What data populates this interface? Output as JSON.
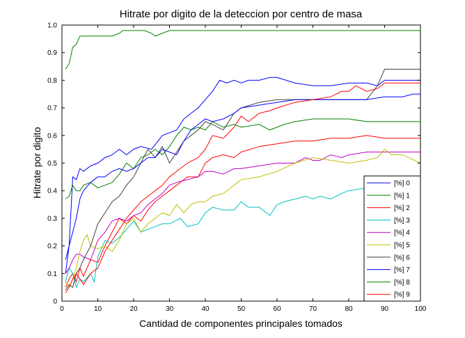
{
  "chart_data": {
    "type": "line",
    "title": "Hitrate por digito de la deteccion por centro de masa",
    "xlabel": "Cantidad de componentes principales tomados",
    "ylabel": "Hitrate por digito",
    "xlim": [
      0,
      100
    ],
    "ylim": [
      0,
      1
    ],
    "xticks": [
      0,
      10,
      20,
      30,
      40,
      50,
      60,
      70,
      80,
      90,
      100
    ],
    "yticks": [
      0,
      0.1,
      0.2,
      0.3,
      0.4,
      0.5,
      0.6,
      0.7,
      0.8,
      0.9,
      1.0
    ],
    "xtick_labels": [
      "0",
      "10",
      "20",
      "30",
      "40",
      "50",
      "60",
      "70",
      "80",
      "90",
      "100"
    ],
    "ytick_labels": [
      "0",
      "0.1",
      "0.2",
      "0.3",
      "0.4",
      "0.5",
      "0.6",
      "0.7",
      "0.8",
      "0.9",
      "1.0"
    ],
    "grid": false,
    "legend_position": "bottom-right",
    "series": [
      {
        "name": "[%] 0",
        "color": "#0000ff",
        "x": [
          1,
          2,
          3,
          4,
          5,
          6,
          8,
          10,
          12,
          14,
          16,
          18,
          20,
          22,
          25,
          28,
          30,
          32,
          34,
          36,
          38,
          40,
          42,
          44,
          46,
          48,
          50,
          52,
          55,
          58,
          60,
          65,
          70,
          75,
          80,
          85,
          88,
          90,
          95,
          100
        ],
        "y": [
          0.15,
          0.2,
          0.45,
          0.44,
          0.48,
          0.47,
          0.49,
          0.5,
          0.52,
          0.53,
          0.55,
          0.53,
          0.55,
          0.56,
          0.55,
          0.6,
          0.61,
          0.62,
          0.66,
          0.68,
          0.7,
          0.73,
          0.76,
          0.8,
          0.79,
          0.8,
          0.79,
          0.8,
          0.8,
          0.81,
          0.81,
          0.79,
          0.78,
          0.78,
          0.79,
          0.79,
          0.78,
          0.8,
          0.8,
          0.8
        ]
      },
      {
        "name": "[%] 1",
        "color": "#008000",
        "x": [
          1,
          2,
          3,
          4,
          5,
          6,
          8,
          10,
          12,
          14,
          16,
          18,
          20,
          22,
          24,
          26,
          28,
          30,
          32,
          34,
          36,
          38,
          40,
          42,
          45,
          48,
          50,
          55,
          58,
          60,
          62,
          65,
          70,
          75,
          80,
          85,
          90,
          95,
          100
        ],
        "y": [
          0.37,
          0.38,
          0.42,
          0.4,
          0.4,
          0.42,
          0.43,
          0.41,
          0.42,
          0.43,
          0.46,
          0.5,
          0.48,
          0.52,
          0.53,
          0.55,
          0.53,
          0.56,
          0.6,
          0.63,
          0.62,
          0.63,
          0.62,
          0.65,
          0.63,
          0.64,
          0.63,
          0.64,
          0.62,
          0.63,
          0.64,
          0.65,
          0.66,
          0.66,
          0.66,
          0.65,
          0.65,
          0.65,
          0.65
        ]
      },
      {
        "name": "[%] 2",
        "color": "#ff0000",
        "x": [
          1,
          2,
          3,
          4,
          5,
          6,
          8,
          10,
          12,
          14,
          16,
          18,
          20,
          22,
          24,
          26,
          28,
          30,
          32,
          35,
          38,
          40,
          42,
          45,
          48,
          50,
          55,
          60,
          65,
          70,
          75,
          80,
          85,
          90,
          95,
          100
        ],
        "y": [
          0.05,
          0.08,
          0.1,
          0.07,
          0.12,
          0.09,
          0.15,
          0.14,
          0.2,
          0.25,
          0.3,
          0.28,
          0.31,
          0.29,
          0.33,
          0.36,
          0.38,
          0.4,
          0.42,
          0.45,
          0.45,
          0.5,
          0.52,
          0.53,
          0.52,
          0.54,
          0.56,
          0.57,
          0.58,
          0.58,
          0.59,
          0.59,
          0.6,
          0.59,
          0.59,
          0.59
        ]
      },
      {
        "name": "[%] 3",
        "color": "#00bfbf",
        "x": [
          1,
          2,
          3,
          4,
          5,
          6,
          8,
          9,
          10,
          12,
          14,
          16,
          18,
          20,
          22,
          24,
          26,
          28,
          30,
          33,
          35,
          38,
          40,
          42,
          45,
          48,
          50,
          52,
          55,
          58,
          60,
          62,
          65,
          68,
          70,
          72,
          75,
          78,
          80,
          85,
          90,
          95,
          100
        ],
        "y": [
          0.07,
          0.12,
          0.1,
          0.05,
          0.08,
          0.07,
          0.1,
          0.07,
          0.16,
          0.22,
          0.21,
          0.23,
          0.26,
          0.29,
          0.25,
          0.26,
          0.27,
          0.28,
          0.28,
          0.3,
          0.27,
          0.28,
          0.32,
          0.34,
          0.33,
          0.33,
          0.36,
          0.34,
          0.34,
          0.31,
          0.35,
          0.36,
          0.37,
          0.38,
          0.37,
          0.38,
          0.37,
          0.39,
          0.4,
          0.41,
          0.42,
          0.42,
          0.42
        ]
      },
      {
        "name": "[%] 4",
        "color": "#bf00bf",
        "x": [
          1,
          2,
          3,
          4,
          5,
          6,
          8,
          10,
          12,
          14,
          16,
          18,
          20,
          22,
          24,
          26,
          28,
          30,
          32,
          35,
          38,
          40,
          42,
          45,
          48,
          50,
          55,
          60,
          65,
          68,
          70,
          72,
          75,
          78,
          80,
          85,
          88,
          90,
          95,
          100
        ],
        "y": [
          0.1,
          0.12,
          0.15,
          0.17,
          0.17,
          0.16,
          0.15,
          0.22,
          0.25,
          0.29,
          0.3,
          0.29,
          0.31,
          0.32,
          0.35,
          0.37,
          0.39,
          0.42,
          0.43,
          0.44,
          0.45,
          0.47,
          0.47,
          0.46,
          0.48,
          0.48,
          0.49,
          0.5,
          0.5,
          0.52,
          0.51,
          0.51,
          0.53,
          0.52,
          0.53,
          0.54,
          0.54,
          0.54,
          0.54,
          0.54
        ]
      },
      {
        "name": "[%] 5",
        "color": "#bfbf00",
        "x": [
          1,
          2,
          3,
          4,
          5,
          6,
          7,
          8,
          10,
          12,
          14,
          16,
          18,
          20,
          22,
          24,
          26,
          28,
          30,
          32,
          34,
          36,
          38,
          40,
          42,
          45,
          48,
          50,
          55,
          60,
          65,
          70,
          75,
          80,
          85,
          88,
          90,
          92,
          95,
          100
        ],
        "y": [
          0.07,
          0.05,
          0.08,
          0.12,
          0.18,
          0.22,
          0.24,
          0.2,
          0.19,
          0.2,
          0.18,
          0.22,
          0.28,
          0.3,
          0.25,
          0.28,
          0.3,
          0.32,
          0.31,
          0.35,
          0.32,
          0.35,
          0.36,
          0.36,
          0.38,
          0.39,
          0.42,
          0.44,
          0.45,
          0.47,
          0.5,
          0.52,
          0.51,
          0.5,
          0.51,
          0.52,
          0.55,
          0.53,
          0.53,
          0.5
        ]
      },
      {
        "name": "[%] 6",
        "color": "#404040",
        "x": [
          1,
          2,
          3,
          4,
          5,
          6,
          8,
          10,
          12,
          14,
          16,
          18,
          20,
          22,
          24,
          26,
          28,
          30,
          32,
          34,
          36,
          38,
          40,
          42,
          45,
          48,
          50,
          55,
          60,
          65,
          70,
          75,
          80,
          85,
          88,
          90,
          95,
          100
        ],
        "y": [
          0.04,
          0.06,
          0.05,
          0.1,
          0.12,
          0.15,
          0.2,
          0.28,
          0.32,
          0.36,
          0.38,
          0.42,
          0.45,
          0.5,
          0.55,
          0.52,
          0.56,
          0.5,
          0.54,
          0.58,
          0.6,
          0.62,
          0.65,
          0.64,
          0.62,
          0.68,
          0.7,
          0.72,
          0.73,
          0.73,
          0.73,
          0.73,
          0.73,
          0.73,
          0.78,
          0.84,
          0.84,
          0.84
        ]
      },
      {
        "name": "[%] 7",
        "color": "#0000ff",
        "x": [
          1,
          2,
          3,
          4,
          5,
          6,
          8,
          10,
          12,
          14,
          16,
          18,
          20,
          22,
          24,
          26,
          28,
          30,
          32,
          34,
          36,
          38,
          40,
          42,
          45,
          48,
          50,
          55,
          60,
          65,
          70,
          75,
          80,
          85,
          90,
          95,
          98,
          100
        ],
        "y": [
          0.1,
          0.2,
          0.25,
          0.3,
          0.37,
          0.4,
          0.43,
          0.45,
          0.45,
          0.47,
          0.48,
          0.47,
          0.48,
          0.5,
          0.52,
          0.52,
          0.55,
          0.54,
          0.53,
          0.58,
          0.62,
          0.64,
          0.66,
          0.65,
          0.66,
          0.68,
          0.7,
          0.71,
          0.72,
          0.73,
          0.73,
          0.73,
          0.73,
          0.73,
          0.74,
          0.74,
          0.75,
          0.75
        ]
      },
      {
        "name": "[%] 8",
        "color": "#008000",
        "x": [
          1,
          2,
          3,
          4,
          5,
          6,
          8,
          10,
          12,
          14,
          16,
          17,
          20,
          23,
          25,
          26,
          28,
          30,
          35,
          40,
          45,
          50,
          55,
          60,
          70,
          80,
          90,
          100
        ],
        "y": [
          0.84,
          0.86,
          0.92,
          0.93,
          0.96,
          0.96,
          0.96,
          0.96,
          0.96,
          0.96,
          0.97,
          0.98,
          0.98,
          0.98,
          0.97,
          0.96,
          0.97,
          0.98,
          0.98,
          0.98,
          0.98,
          0.98,
          0.98,
          0.98,
          0.98,
          0.98,
          0.98,
          0.98
        ]
      },
      {
        "name": "[%] 9",
        "color": "#ff0000",
        "x": [
          1,
          2,
          3,
          4,
          5,
          6,
          8,
          10,
          12,
          14,
          16,
          18,
          20,
          22,
          24,
          26,
          28,
          30,
          32,
          35,
          38,
          40,
          42,
          45,
          48,
          50,
          52,
          55,
          58,
          60,
          65,
          70,
          75,
          78,
          80,
          82,
          85,
          88,
          90,
          95,
          100
        ],
        "y": [
          0.03,
          0.05,
          0.08,
          0.1,
          0.08,
          0.06,
          0.1,
          0.12,
          0.18,
          0.22,
          0.26,
          0.3,
          0.33,
          0.36,
          0.38,
          0.4,
          0.42,
          0.45,
          0.47,
          0.5,
          0.52,
          0.55,
          0.6,
          0.59,
          0.63,
          0.67,
          0.65,
          0.68,
          0.69,
          0.7,
          0.72,
          0.73,
          0.74,
          0.76,
          0.76,
          0.78,
          0.76,
          0.77,
          0.79,
          0.79,
          0.79
        ]
      }
    ]
  }
}
